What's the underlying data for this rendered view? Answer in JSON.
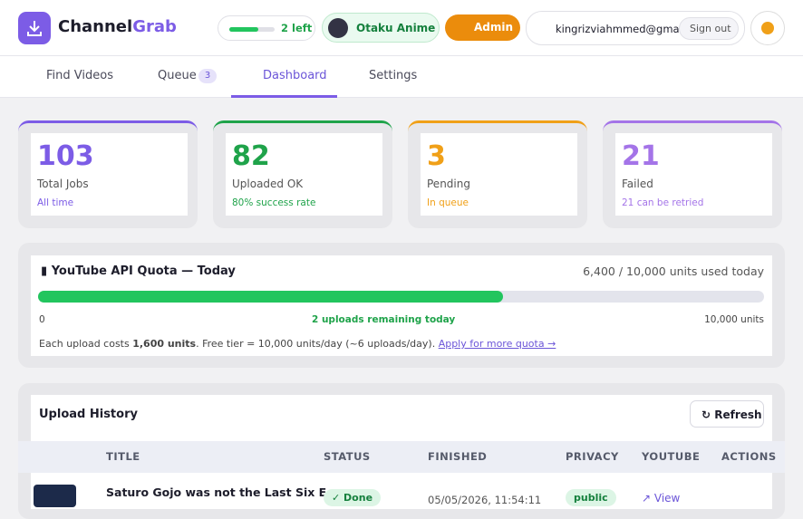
{
  "header": {
    "brand_a": "Channel",
    "brand_b": "Grab",
    "quota_left": "2 left",
    "channel": "Otaku Anime F",
    "admin": "Admin",
    "user": "kingrizviahmmed@gma",
    "signout": "Sign out"
  },
  "tabs": [
    {
      "label": "Find Videos"
    },
    {
      "label": "Queue",
      "badge": "3"
    },
    {
      "label": "Dashboard"
    },
    {
      "label": "Settings"
    }
  ],
  "stats": [
    {
      "value": 103,
      "label": "Total Jobs",
      "note": "All time",
      "color": "#7c5ce6"
    },
    {
      "value": 82,
      "label": "Uploaded OK",
      "note": "80% success rate",
      "color": "#1fa34a"
    },
    {
      "value": 3,
      "label": "Pending",
      "note": "In queue",
      "color": "#f0a018"
    },
    {
      "value": 21,
      "label": "Failed",
      "note": "21 can be retried",
      "color": "#a474e8"
    }
  ],
  "quota": {
    "title": "YouTube API Quota — Today",
    "used": "6,400 / 10,000 units used today",
    "progress": 64,
    "min": "0",
    "center": "2 uploads remaining today",
    "max": "10,000 units",
    "note_a": "Each upload costs ",
    "note_b": "1,600 units",
    "note_c": ". Free tier = 10,000 units/day (~6 uploads/day). ",
    "link": "Apply for more quota →"
  },
  "history": {
    "title": "Upload History",
    "refresh": "Refresh",
    "columns": [
      "TITLE",
      "STATUS",
      "FINISHED",
      "PRIVACY",
      "YOUTUBE",
      "ACTIONS"
    ],
    "rows": [
      {
        "title": "Saturo Gojo was not the Last Six E",
        "status": "✓ Done",
        "finished": "05/05/2026, 11:54:11",
        "privacy": "public",
        "youtube": "View"
      }
    ]
  }
}
